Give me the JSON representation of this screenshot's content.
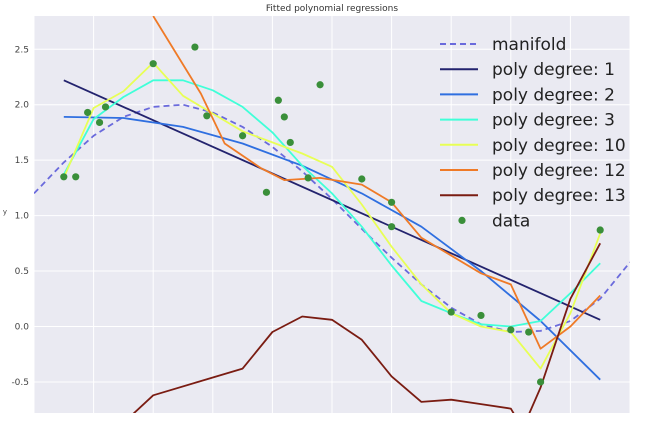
{
  "chart_data": {
    "type": "line",
    "title": "Fitted polynomial regressions",
    "xlabel": "",
    "ylabel": "y",
    "xlim": [
      0,
      10
    ],
    "ylim": [
      -0.78,
      2.8
    ],
    "yticks": [
      "2.5",
      "2.0",
      "1.5",
      "1.0",
      "0.5",
      "0.0",
      "-0.5"
    ],
    "ytick_values": [
      2.5,
      2.0,
      1.5,
      1.0,
      0.5,
      0.0,
      -0.5
    ],
    "grid": true,
    "legend_position": "top-right",
    "background": "#eaeaf2",
    "x": [
      0.0,
      0.5,
      1.0,
      1.5,
      2.0,
      2.5,
      3.0,
      3.5,
      4.0,
      4.5,
      5.0,
      5.5,
      6.0,
      6.5,
      7.0,
      7.5,
      8.0,
      8.5,
      9.0,
      9.5,
      10.0
    ],
    "series": [
      {
        "name": "manifold",
        "color": "#6a6adc",
        "dashed": true,
        "points": [
          [
            0.0,
            1.2
          ],
          [
            0.5,
            1.48
          ],
          [
            1.0,
            1.72
          ],
          [
            1.5,
            1.89
          ],
          [
            2.0,
            1.98
          ],
          [
            2.5,
            2.0
          ],
          [
            3.0,
            1.93
          ],
          [
            3.5,
            1.8
          ],
          [
            4.0,
            1.62
          ],
          [
            4.5,
            1.4
          ],
          [
            5.0,
            1.15
          ],
          [
            5.5,
            0.88
          ],
          [
            6.0,
            0.62
          ],
          [
            6.5,
            0.38
          ],
          [
            7.0,
            0.17
          ],
          [
            7.5,
            0.02
          ],
          [
            8.0,
            -0.05
          ],
          [
            8.5,
            -0.04
          ],
          [
            9.0,
            0.05
          ],
          [
            9.5,
            0.25
          ],
          [
            10.0,
            0.58
          ]
        ]
      },
      {
        "name": "poly degree: 1",
        "color": "#23236e",
        "points": [
          [
            0.5,
            2.22
          ],
          [
            9.5,
            0.06
          ]
        ]
      },
      {
        "name": "poly degree: 2",
        "color": "#2f6fe0",
        "points": [
          [
            0.5,
            1.89
          ],
          [
            1.5,
            1.88
          ],
          [
            2.5,
            1.8
          ],
          [
            3.5,
            1.65
          ],
          [
            4.5,
            1.45
          ],
          [
            5.5,
            1.2
          ],
          [
            6.5,
            0.9
          ],
          [
            7.5,
            0.5
          ],
          [
            8.5,
            0.05
          ],
          [
            9.5,
            -0.48
          ]
        ]
      },
      {
        "name": "poly degree: 3",
        "color": "#40ffd8",
        "points": [
          [
            0.5,
            1.37
          ],
          [
            1.0,
            1.87
          ],
          [
            1.5,
            2.07
          ],
          [
            2.0,
            2.22
          ],
          [
            2.5,
            2.22
          ],
          [
            3.0,
            2.13
          ],
          [
            3.5,
            1.98
          ],
          [
            4.0,
            1.75
          ],
          [
            4.5,
            1.45
          ],
          [
            5.0,
            1.2
          ],
          [
            5.5,
            0.9
          ],
          [
            6.0,
            0.55
          ],
          [
            6.5,
            0.23
          ],
          [
            7.0,
            0.12
          ],
          [
            7.5,
            0.02
          ],
          [
            8.0,
            0.0
          ],
          [
            8.5,
            0.05
          ],
          [
            9.0,
            0.3
          ],
          [
            9.5,
            0.57
          ]
        ]
      },
      {
        "name": "poly degree: 10",
        "color": "#e8ff55",
        "points": [
          [
            0.5,
            1.34
          ],
          [
            1.0,
            1.97
          ],
          [
            1.5,
            2.12
          ],
          [
            2.0,
            2.38
          ],
          [
            2.5,
            2.08
          ],
          [
            3.0,
            1.92
          ],
          [
            3.5,
            1.76
          ],
          [
            4.0,
            1.66
          ],
          [
            4.5,
            1.56
          ],
          [
            5.0,
            1.44
          ],
          [
            5.5,
            1.1
          ],
          [
            6.0,
            0.72
          ],
          [
            6.5,
            0.38
          ],
          [
            7.0,
            0.12
          ],
          [
            7.5,
            0.0
          ],
          [
            8.0,
            -0.05
          ],
          [
            8.5,
            -0.38
          ],
          [
            9.0,
            0.12
          ],
          [
            9.5,
            0.84
          ]
        ]
      },
      {
        "name": "poly degree: 12",
        "color": "#ef7a27",
        "points": [
          [
            2.0,
            2.8
          ],
          [
            2.8,
            2.1
          ],
          [
            3.2,
            1.65
          ],
          [
            3.8,
            1.43
          ],
          [
            4.2,
            1.32
          ],
          [
            4.8,
            1.34
          ],
          [
            5.5,
            1.28
          ],
          [
            6.0,
            1.12
          ],
          [
            6.5,
            0.8
          ],
          [
            7.5,
            0.48
          ],
          [
            8.0,
            0.38
          ],
          [
            8.5,
            -0.2
          ],
          [
            9.0,
            0.0
          ],
          [
            9.5,
            0.28
          ]
        ]
      },
      {
        "name": "poly degree: 13",
        "color": "#7a1c12",
        "points": [
          [
            1.4,
            -0.92
          ],
          [
            2.0,
            -0.62
          ],
          [
            3.0,
            -0.46
          ],
          [
            3.5,
            -0.38
          ],
          [
            4.0,
            -0.05
          ],
          [
            4.5,
            0.09
          ],
          [
            5.0,
            0.06
          ],
          [
            5.5,
            -0.12
          ],
          [
            6.0,
            -0.45
          ],
          [
            6.5,
            -0.68
          ],
          [
            7.0,
            -0.66
          ],
          [
            7.5,
            -0.7
          ],
          [
            8.0,
            -0.74
          ],
          [
            8.2,
            -0.92
          ],
          [
            8.5,
            -0.55
          ],
          [
            9.0,
            0.25
          ],
          [
            9.5,
            0.75
          ]
        ]
      }
    ],
    "data": {
      "name": "data",
      "color": "#3a8f3a",
      "points": [
        [
          0.5,
          1.35
        ],
        [
          0.7,
          1.35
        ],
        [
          0.9,
          1.93
        ],
        [
          1.1,
          1.84
        ],
        [
          1.2,
          1.98
        ],
        [
          2.0,
          2.37
        ],
        [
          2.7,
          2.52
        ],
        [
          2.9,
          1.9
        ],
        [
          3.5,
          1.72
        ],
        [
          3.9,
          1.21
        ],
        [
          4.1,
          2.04
        ],
        [
          4.2,
          1.89
        ],
        [
          4.3,
          1.66
        ],
        [
          4.6,
          1.34
        ],
        [
          4.8,
          2.18
        ],
        [
          5.5,
          1.33
        ],
        [
          6.0,
          1.12
        ],
        [
          6.0,
          0.9
        ],
        [
          7.0,
          0.13
        ],
        [
          7.5,
          0.1
        ],
        [
          8.0,
          -0.03
        ],
        [
          8.3,
          -0.05
        ],
        [
          8.5,
          -0.5
        ],
        [
          9.5,
          0.87
        ]
      ]
    }
  }
}
